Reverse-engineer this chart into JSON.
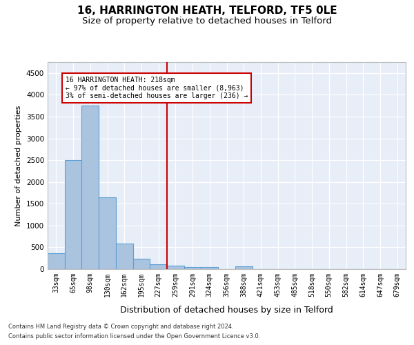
{
  "title": "16, HARRINGTON HEATH, TELFORD, TF5 0LE",
  "subtitle": "Size of property relative to detached houses in Telford",
  "xlabel": "Distribution of detached houses by size in Telford",
  "ylabel": "Number of detached properties",
  "footer_line1": "Contains HM Land Registry data © Crown copyright and database right 2024.",
  "footer_line2": "Contains public sector information licensed under the Open Government Licence v3.0.",
  "categories": [
    "33sqm",
    "65sqm",
    "98sqm",
    "130sqm",
    "162sqm",
    "195sqm",
    "227sqm",
    "259sqm",
    "291sqm",
    "324sqm",
    "356sqm",
    "388sqm",
    "421sqm",
    "453sqm",
    "485sqm",
    "518sqm",
    "550sqm",
    "582sqm",
    "614sqm",
    "647sqm",
    "679sqm"
  ],
  "values": [
    370,
    2500,
    3750,
    1640,
    590,
    230,
    110,
    80,
    55,
    40,
    0,
    60,
    0,
    0,
    0,
    0,
    0,
    0,
    0,
    0,
    0
  ],
  "bar_color": "#aac4e0",
  "bar_edge_color": "#5a9fd4",
  "vline_x": 6.5,
  "vline_color": "#cc0000",
  "annotation_text": "16 HARRINGTON HEATH: 218sqm\n← 97% of detached houses are smaller (8,963)\n3% of semi-detached houses are larger (236) →",
  "annotation_box_color": "#cc0000",
  "ylim": [
    0,
    4750
  ],
  "yticks": [
    0,
    500,
    1000,
    1500,
    2000,
    2500,
    3000,
    3500,
    4000,
    4500
  ],
  "background_color": "#e8eef8",
  "grid_color": "#ffffff",
  "title_fontsize": 11,
  "subtitle_fontsize": 9.5,
  "axis_label_fontsize": 8,
  "tick_fontsize": 7,
  "footer_fontsize": 6
}
